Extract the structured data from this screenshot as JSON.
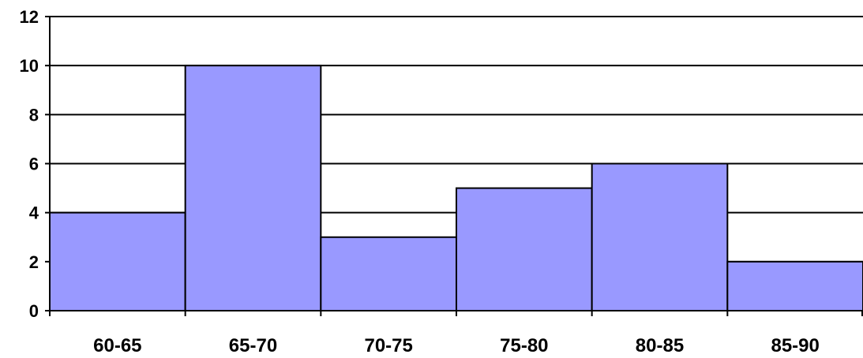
{
  "chart_data": {
    "type": "bar",
    "categories": [
      "60-65",
      "65-70",
      "70-75",
      "75-80",
      "80-85",
      "85-90"
    ],
    "values": [
      4,
      10,
      3,
      5,
      6,
      2
    ],
    "ylim": [
      0,
      12
    ],
    "yticks": [
      "0",
      "2",
      "4",
      "6",
      "8",
      "10",
      "12"
    ],
    "title": "",
    "xlabel": "",
    "ylabel": "",
    "grid": true,
    "bar_color": "#9999ff",
    "bar_edge_color": "#000000",
    "gridline_color": "#000000"
  }
}
